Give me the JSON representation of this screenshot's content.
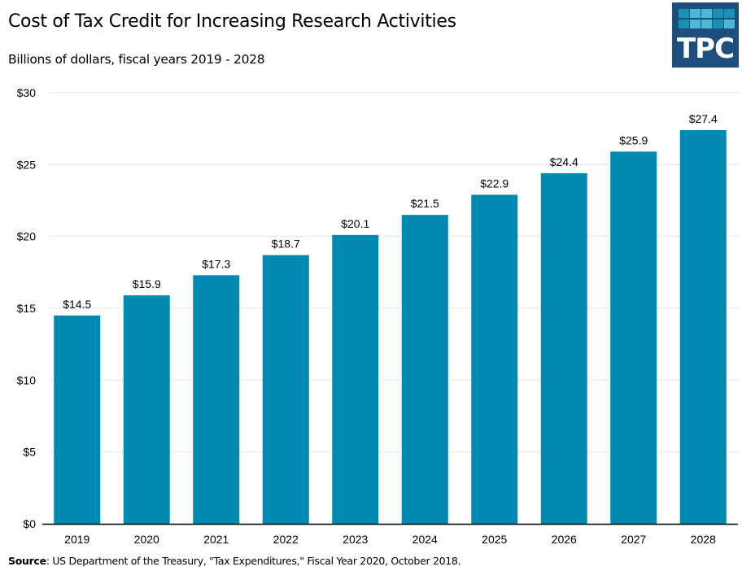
{
  "header": {
    "title": "Cost of Tax Credit for Increasing Research Activities",
    "subtitle": "Billions of dollars, fiscal years 2019  - 2028"
  },
  "logo": {
    "text": "TPC",
    "background": "#1d4e7e",
    "cell_colors": [
      "#1d8fb5",
      "#4fb6d6",
      "#4fb6d6",
      "#1d8fb5",
      "#1d8fb5",
      "#1d8fb5",
      "#4fb6d6",
      "#4fb6d6",
      "#1d8fb5",
      "#4fb6d6"
    ]
  },
  "source": {
    "label": "Source",
    "text": ": US Department of the Treasury, \"Tax Expenditures,\" Fiscal Year 2020, October 2018."
  },
  "chart_data": {
    "type": "bar",
    "title": "Cost of Tax Credit for Increasing Research Activities",
    "subtitle": "Billions of dollars, fiscal years 2019  - 2028",
    "xlabel": "",
    "ylabel": "",
    "categories": [
      "2019",
      "2020",
      "2021",
      "2022",
      "2023",
      "2024",
      "2025",
      "2026",
      "2027",
      "2028"
    ],
    "values": [
      14.5,
      15.9,
      17.3,
      18.7,
      20.1,
      21.5,
      22.9,
      24.4,
      25.9,
      27.4
    ],
    "data_labels": [
      "$14.5",
      "$15.9",
      "$17.3",
      "$18.7",
      "$20.1",
      "$21.5",
      "$22.9",
      "$24.4",
      "$25.9",
      "$27.4"
    ],
    "ylim": [
      0,
      30
    ],
    "yticks": [
      0,
      5,
      10,
      15,
      20,
      25,
      30
    ],
    "ytick_labels": [
      "$0",
      "$5",
      "$10",
      "$15",
      "$20",
      "$25",
      "$30"
    ],
    "grid": true,
    "legend": "none",
    "bar_color": "#0089b0",
    "grid_color": "#cccccc",
    "axis_color": "#000000"
  }
}
